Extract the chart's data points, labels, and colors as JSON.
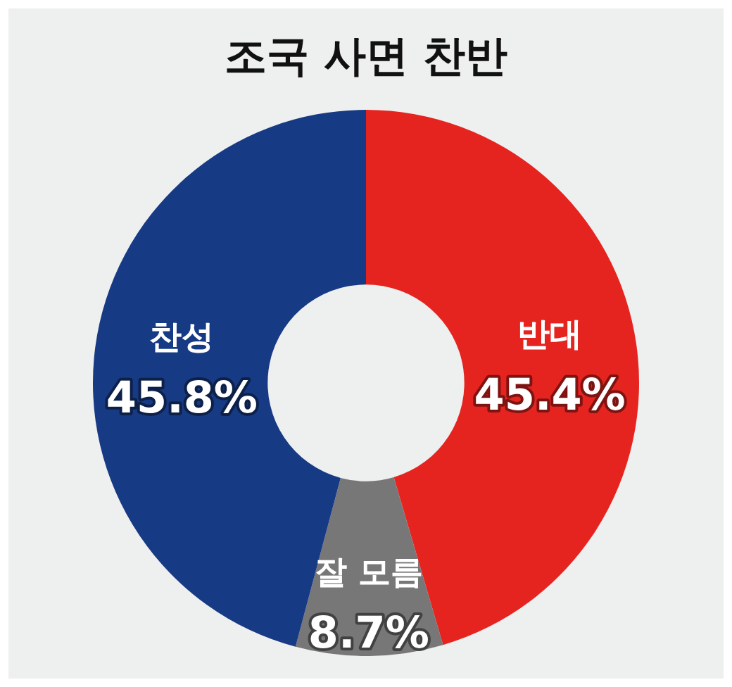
{
  "chart_data": {
    "type": "donut",
    "title": "조국 사면 찬반",
    "categories": [
      "반대",
      "잘 모름",
      "찬성"
    ],
    "values": [
      45.4,
      8.7,
      45.8
    ],
    "colors": [
      "#e52420",
      "#777777",
      "#173a84"
    ],
    "value_labels": [
      "45.4%",
      "8.7%",
      "45.8%"
    ],
    "legend": false
  }
}
